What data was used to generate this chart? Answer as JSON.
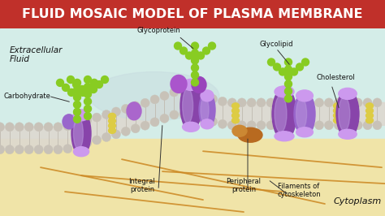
{
  "title": "FLUID MOSAIC MODEL OF PLASMA MEMBRANE",
  "title_bg_top": "#c0302a",
  "title_bg_bot": "#a02020",
  "title_color": "#ffffff",
  "title_fontsize": 11.5,
  "ext_bg": "#d4ede8",
  "cyto_bg": "#f0e4a8",
  "membrane_bg": "#d0cac0",
  "head_color": "#c8c2b8",
  "head_outline": "#b0a898",
  "tail_color": "#ddd8d0",
  "protein_dark": "#8844aa",
  "protein_mid": "#9966cc",
  "protein_light": "#bb99dd",
  "protein_top": "#cc99ee",
  "cholesterol_color": "#ddcc44",
  "glyco_color": "#88cc22",
  "filament_color": "#cc8822",
  "peripheral_color": "#cc8833",
  "bulge_color": "#c8dce0",
  "label_color": "#111111",
  "labels": {
    "extracellular": "Extracellular\nFluid",
    "carbohydrate": "Carbohydrate",
    "glycoprotein": "Glycoprotein",
    "glycolipid": "Glycolipid",
    "cholesterol": "Cholesterol",
    "integral": "Integral\nprotein",
    "peripheral": "Peripheral\nprotein",
    "filaments": "Filaments of\ncytoskeleton",
    "cytoplasm": "Cytoplasm"
  }
}
